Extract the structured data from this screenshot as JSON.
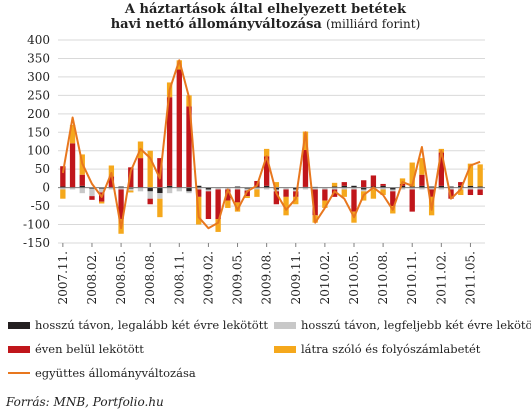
{
  "title": {
    "line1": "A háztartások által elhelyezett betétek",
    "line2_bold": "havi  nettó állományváltozása",
    "line2_unit": "(milliárd forint)"
  },
  "source": "Forrás: MNB, Portfolio.hu",
  "colors": {
    "long2y": "#231f20",
    "long_max2y": "#c8c8c8",
    "under1y": "#c0161b",
    "current": "#f5a81c",
    "total": "#e8771e",
    "grid": "#d9d9d9"
  },
  "chart_data": {
    "type": "bar",
    "stacked": true,
    "ylim": [
      -150,
      400
    ],
    "yticks": [
      400,
      350,
      300,
      250,
      200,
      150,
      100,
      50,
      0,
      -50,
      -100,
      -150
    ],
    "xtick_labels": [
      "2007.11.",
      "2008.02.",
      "2008.05.",
      "2008.08.",
      "2008.11.",
      "2009.02.",
      "2009.05.",
      "2009.08.",
      "2009.11.",
      "2010.02.",
      "2010.05.",
      "2010.08.",
      "2010.11.",
      "2011.02.",
      "2011.05."
    ],
    "categories": [
      "2007.11.",
      "2007.12.",
      "2008.01.",
      "2008.02.",
      "2008.03.",
      "2008.04.",
      "2008.05.",
      "2008.06.",
      "2008.07.",
      "2008.08.",
      "2008.09.",
      "2008.10.",
      "2008.11.",
      "2008.12.",
      "2009.01.",
      "2009.02.",
      "2009.03.",
      "2009.04.",
      "2009.05.",
      "2009.06.",
      "2009.07.",
      "2009.08.",
      "2009.09.",
      "2009.10.",
      "2009.11.",
      "2009.12.",
      "2010.01.",
      "2010.02.",
      "2010.03.",
      "2010.04.",
      "2010.05.",
      "2010.06.",
      "2010.07.",
      "2010.08.",
      "2010.09.",
      "2010.10.",
      "2010.11.",
      "2010.12.",
      "2011.01.",
      "2011.02.",
      "2011.03.",
      "2011.04.",
      "2011.05.",
      "2011.06."
    ],
    "series": [
      {
        "name": "hosszú távon, legalább két évre lekötött",
        "key": "long2y",
        "values": [
          3,
          0,
          5,
          -3,
          -3,
          0,
          3,
          -3,
          0,
          -10,
          -15,
          5,
          0,
          -10,
          5,
          -5,
          0,
          0,
          3,
          -3,
          3,
          5,
          -5,
          0,
          -5,
          2,
          2,
          0,
          3,
          5,
          5,
          -5,
          3,
          5,
          -5,
          5,
          3,
          5,
          3,
          5,
          3,
          5,
          5,
          3
        ]
      },
      {
        "name": "hosszú távon, legfeljebb két évre lekötött",
        "key": "long_max2y",
        "values": [
          -5,
          -5,
          -15,
          -20,
          -10,
          -5,
          -5,
          -5,
          -10,
          -20,
          -15,
          -15,
          -10,
          -5,
          -5,
          -5,
          -5,
          -5,
          -5,
          -5,
          -5,
          -5,
          -5,
          -5,
          -5,
          -5,
          -5,
          -5,
          -5,
          -5,
          -5,
          -5,
          -5,
          -5,
          -5,
          -5,
          -5,
          -5,
          -5,
          -5,
          -5,
          -5,
          -5,
          -5
        ]
      },
      {
        "name": "éven belül lekötött",
        "key": "under1y",
        "values": [
          55,
          120,
          30,
          -10,
          -25,
          30,
          -80,
          55,
          80,
          -15,
          80,
          240,
          320,
          220,
          -20,
          -75,
          -80,
          -30,
          -35,
          -15,
          15,
          80,
          -35,
          -20,
          -15,
          100,
          -70,
          -30,
          -20,
          10,
          -60,
          20,
          30,
          5,
          -40,
          5,
          -60,
          30,
          -20,
          90,
          -25,
          10,
          -15,
          -15
        ]
      },
      {
        "name": "látra szóló  és folyószámlabetét",
        "key": "current",
        "values": [
          -25,
          50,
          55,
          0,
          -5,
          30,
          -40,
          -5,
          45,
          100,
          -50,
          40,
          25,
          30,
          -75,
          0,
          -35,
          -20,
          -25,
          -5,
          -20,
          20,
          15,
          -50,
          -20,
          50,
          -20,
          -20,
          10,
          -20,
          -30,
          -25,
          -25,
          -15,
          -20,
          15,
          65,
          45,
          -50,
          10,
          0,
          -15,
          60,
          60
        ]
      }
    ],
    "line": {
      "name": "együttes állományváltozása",
      "values": [
        40,
        190,
        65,
        10,
        -25,
        40,
        -110,
        45,
        105,
        80,
        25,
        265,
        345,
        245,
        -80,
        -110,
        -95,
        -5,
        -60,
        -10,
        5,
        85,
        -15,
        -60,
        -30,
        150,
        -95,
        -55,
        -10,
        -30,
        -80,
        -20,
        0,
        -20,
        -60,
        15,
        5,
        110,
        -60,
        100,
        -30,
        -5,
        60,
        70
      ]
    }
  },
  "legend": {
    "long2y": "hosszú távon, legalább két évre lekötött",
    "long_max2y": "hosszú távon, legfeljebb két évre lekötött",
    "under1y": "éven belül lekötött",
    "current": "látra szóló  és folyószámlabetét",
    "total": "együttes állományváltozása"
  }
}
